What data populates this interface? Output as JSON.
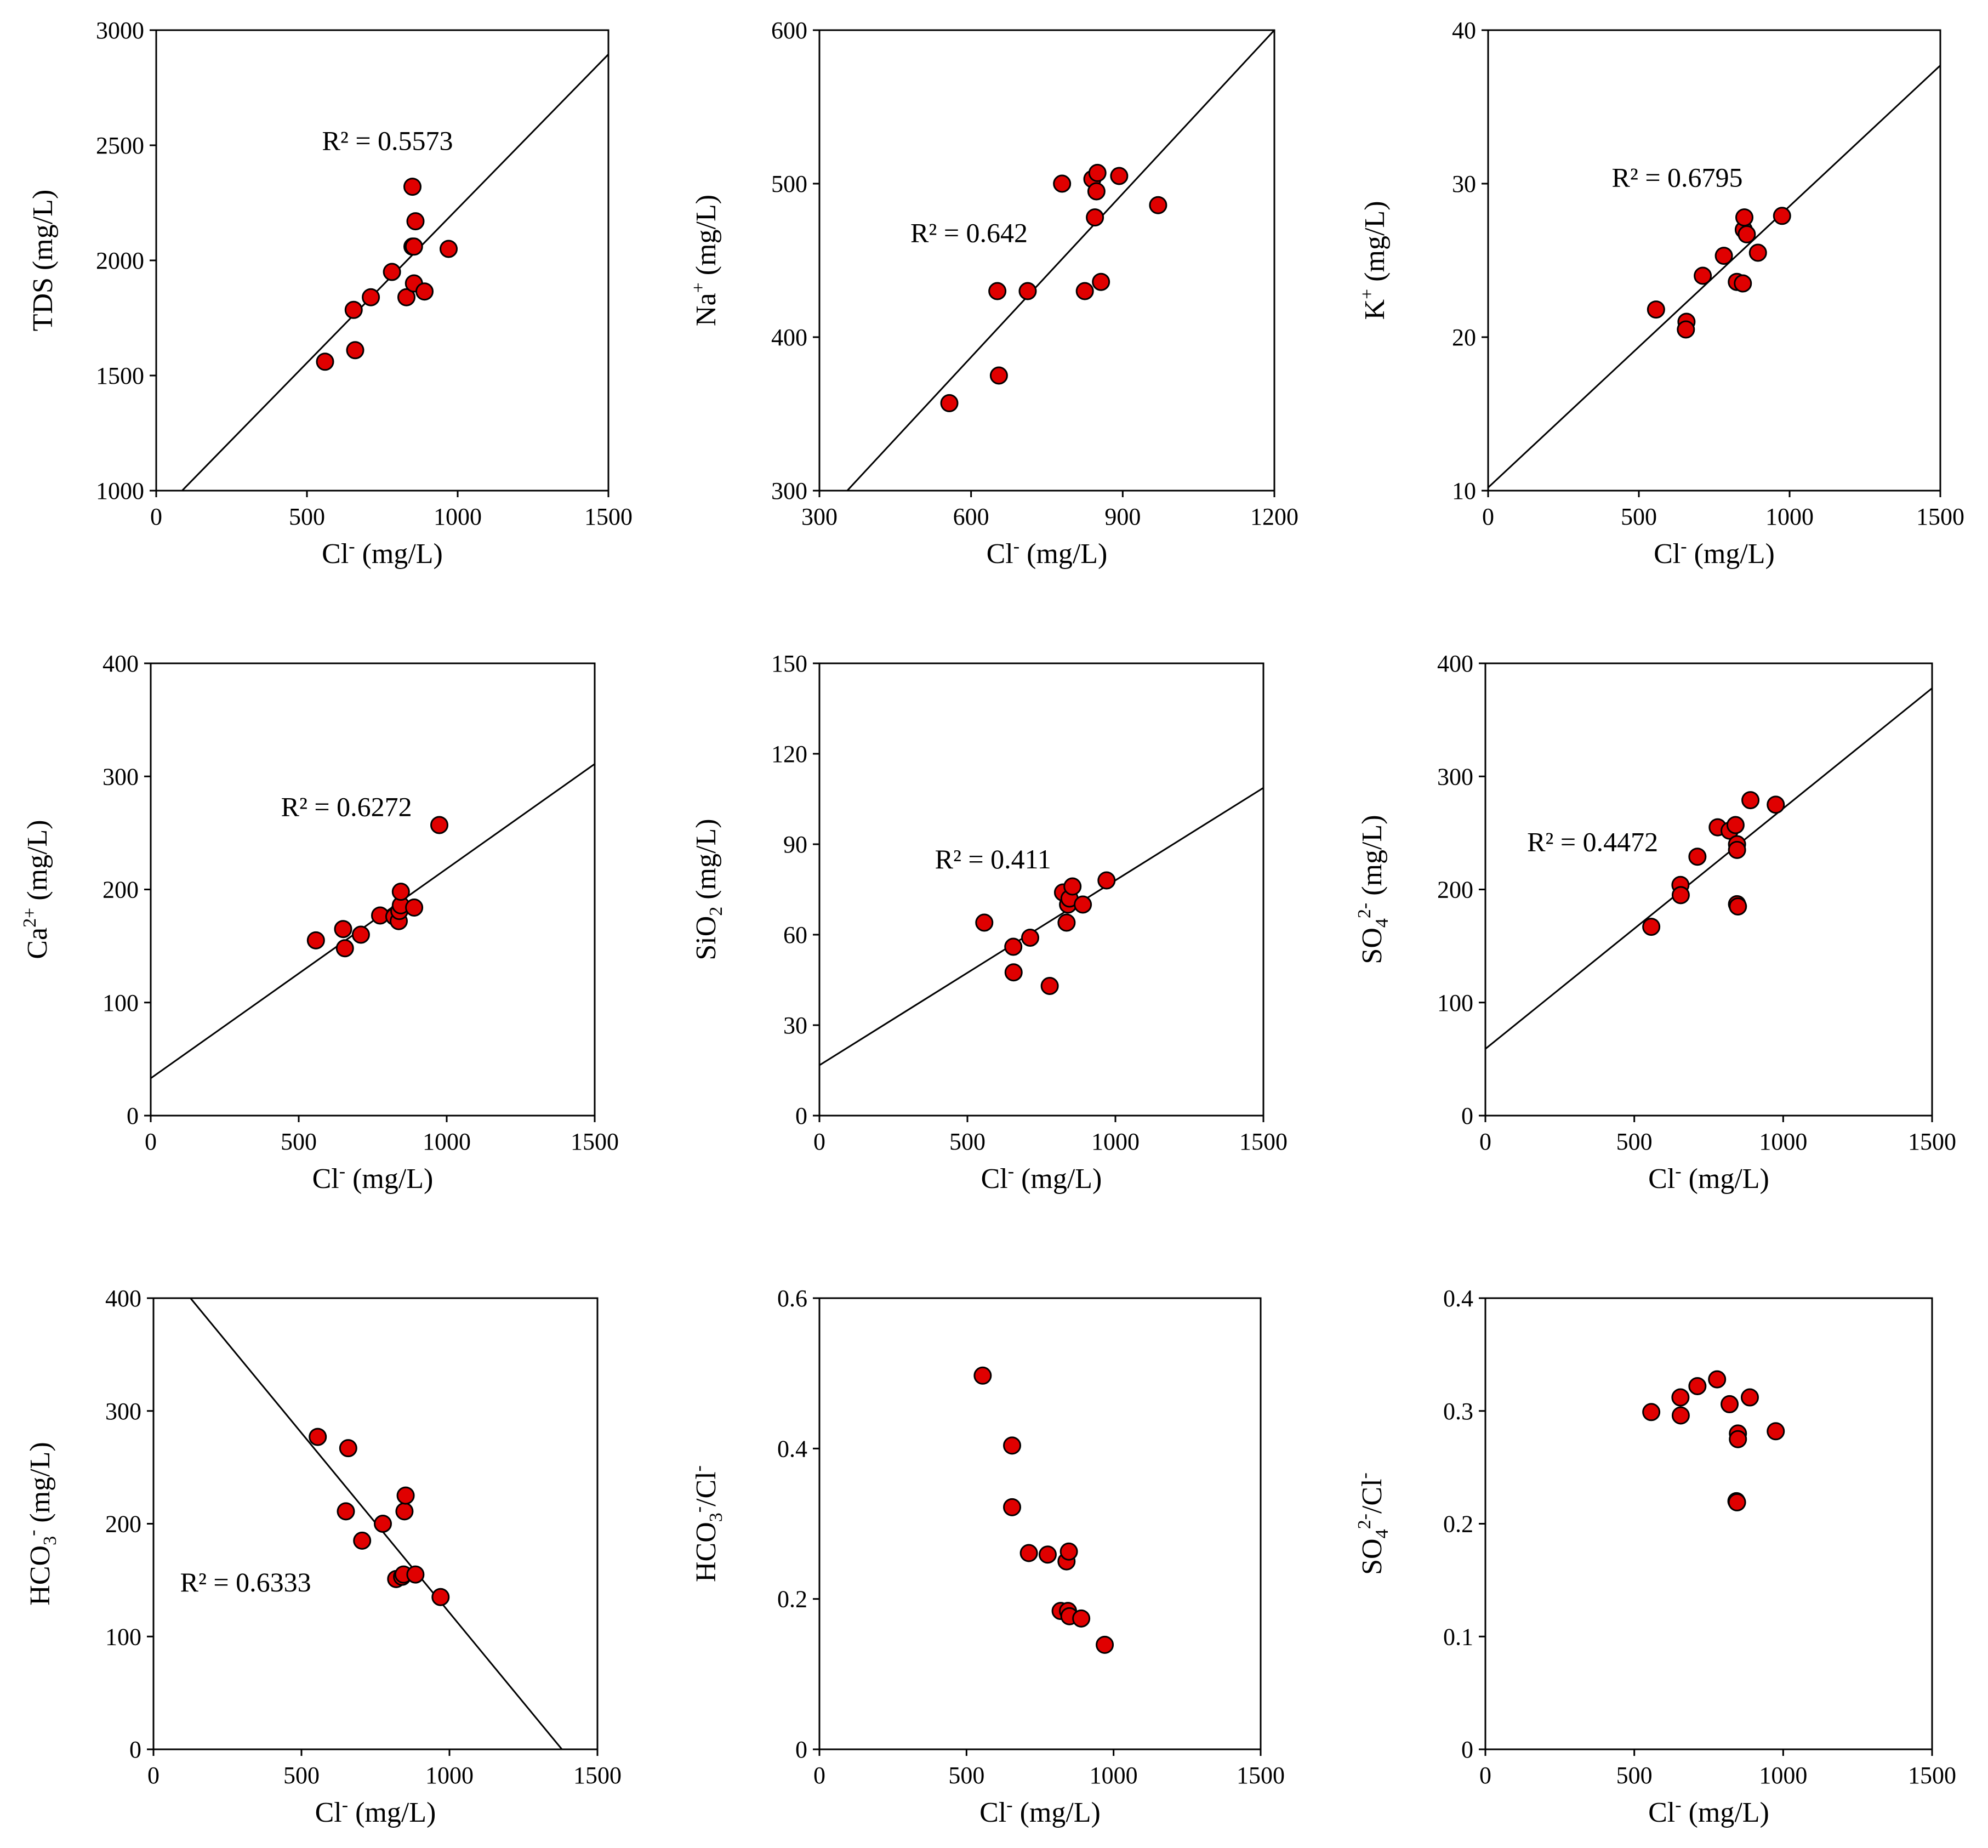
{
  "chart_data": [
    {
      "id": "tds",
      "type": "scatter",
      "xlabel": {
        "main": "Cl",
        "sup": "-",
        "unit": " (mg/L)"
      },
      "ylabel": {
        "main": "TDS",
        "unit": " (mg/L)"
      },
      "xlim": [
        0,
        1500
      ],
      "ylim": [
        1000,
        3000
      ],
      "xticks": [
        "0",
        "500",
        "1000",
        "1500"
      ],
      "yticks": [
        "1000",
        "1500",
        "2000",
        "2500",
        "3000"
      ],
      "r2": "R² = 0.5573",
      "r2_pos": [
        550,
        2480
      ],
      "fit": {
        "x0": 0,
        "y0": 885,
        "x1": 1500,
        "y1": 2895
      },
      "points": [
        [
          560,
          1560
        ],
        [
          660,
          1610
        ],
        [
          655,
          1785
        ],
        [
          712,
          1840
        ],
        [
          782,
          1950
        ],
        [
          830,
          1840
        ],
        [
          850,
          2060
        ],
        [
          855,
          2060
        ],
        [
          855,
          1900
        ],
        [
          890,
          1865
        ],
        [
          860,
          2170
        ],
        [
          850,
          2320
        ],
        [
          970,
          2050
        ]
      ]
    },
    {
      "id": "na",
      "type": "scatter",
      "xlabel": {
        "main": "Cl",
        "sup": "-",
        "unit": " (mg/L)"
      },
      "ylabel": {
        "main": "Na",
        "sup": "+",
        "unit": " (mg/L)"
      },
      "xlim": [
        300,
        1200
      ],
      "ylim": [
        300,
        600
      ],
      "xticks": [
        "300",
        "600",
        "900",
        "1200"
      ],
      "yticks": [
        "300",
        "400",
        "500",
        "600"
      ],
      "r2": "R² = 0.642",
      "r2_pos": [
        480,
        462
      ],
      "fit": {
        "x0": 355,
        "y0": 300,
        "x1": 1200,
        "y1": 600
      },
      "points": [
        [
          557,
          357
        ],
        [
          655,
          375
        ],
        [
          652,
          430
        ],
        [
          712,
          430
        ],
        [
          780,
          500
        ],
        [
          825,
          430
        ],
        [
          840,
          503
        ],
        [
          845,
          478
        ],
        [
          848,
          495
        ],
        [
          850,
          507
        ],
        [
          857,
          436
        ],
        [
          893,
          505
        ],
        [
          970,
          486
        ]
      ]
    },
    {
      "id": "k",
      "type": "scatter",
      "xlabel": {
        "main": "Cl",
        "sup": "-",
        "unit": " (mg/L)"
      },
      "ylabel": {
        "main": "K",
        "sup": "+",
        "unit": " (mg/L)"
      },
      "xlim": [
        0,
        1500
      ],
      "ylim": [
        10,
        40
      ],
      "xticks": [
        "0",
        "500",
        "1000",
        "1500"
      ],
      "yticks": [
        "10",
        "20",
        "30",
        "40"
      ],
      "r2": "R² = 0.6795",
      "r2_pos": [
        410,
        29.8
      ],
      "fit": {
        "x0": 0,
        "y0": 10.2,
        "x1": 1500,
        "y1": 37.7
      },
      "points": [
        [
          557,
          21.8
        ],
        [
          658,
          21.0
        ],
        [
          656,
          20.5
        ],
        [
          712,
          24.0
        ],
        [
          782,
          25.3
        ],
        [
          825,
          23.6
        ],
        [
          845,
          23.5
        ],
        [
          848,
          27.0
        ],
        [
          850,
          27.8
        ],
        [
          858,
          26.7
        ],
        [
          895,
          25.5
        ],
        [
          975,
          27.9
        ]
      ]
    },
    {
      "id": "ca",
      "type": "scatter",
      "xlabel": {
        "main": "Cl",
        "sup": "-",
        "unit": " (mg/L)"
      },
      "ylabel": {
        "main": "Ca",
        "sup": "2+",
        "unit": " (mg/L)"
      },
      "xlim": [
        0,
        1500
      ],
      "ylim": [
        0,
        400
      ],
      "xticks": [
        "0",
        "500",
        "1000",
        "1500"
      ],
      "yticks": [
        "0",
        "100",
        "200",
        "300",
        "400"
      ],
      "r2": "R² = 0.6272",
      "r2_pos": [
        440,
        265
      ],
      "fit": {
        "x0": 0,
        "y0": 33,
        "x1": 1500,
        "y1": 311
      },
      "points": [
        [
          558,
          155
        ],
        [
          650,
          165
        ],
        [
          656,
          148
        ],
        [
          710,
          160
        ],
        [
          775,
          177
        ],
        [
          823,
          176
        ],
        [
          838,
          172
        ],
        [
          840,
          181
        ],
        [
          845,
          186
        ],
        [
          845,
          198
        ],
        [
          890,
          184
        ],
        [
          975,
          257
        ]
      ]
    },
    {
      "id": "si",
      "type": "scatter",
      "xlabel": {
        "main": "Cl",
        "sup": "-",
        "unit": " (mg/L)"
      },
      "ylabel": {
        "main": "SiO",
        "sub": "2",
        "unit": " (mg/L)"
      },
      "xlim": [
        0,
        1500
      ],
      "ylim": [
        0,
        150
      ],
      "xticks": [
        "0",
        "500",
        "1000",
        "1500"
      ],
      "yticks": [
        "0",
        "30",
        "60",
        "90",
        "120",
        "150"
      ],
      "r2": "R² = 0.411",
      "r2_pos": [
        390,
        82
      ],
      "fit": {
        "x0": 0,
        "y0": 16.7,
        "x1": 1500,
        "y1": 108.7
      },
      "points": [
        [
          557,
          64
        ],
        [
          655,
          56
        ],
        [
          656,
          47.5
        ],
        [
          712,
          59
        ],
        [
          778,
          43
        ],
        [
          823,
          74
        ],
        [
          835,
          64
        ],
        [
          840,
          70
        ],
        [
          845,
          72
        ],
        [
          855,
          76
        ],
        [
          890,
          70
        ],
        [
          970,
          78
        ]
      ]
    },
    {
      "id": "so4",
      "type": "scatter",
      "xlabel": {
        "main": "Cl",
        "sup": "-",
        "unit": " (mg/L)"
      },
      "ylabel": {
        "main": "SO",
        "sub": "4",
        "sup": "2-",
        "unit": " (mg/L)"
      },
      "xlim": [
        0,
        1500
      ],
      "ylim": [
        0,
        400
      ],
      "xticks": [
        "0",
        "500",
        "1000",
        "1500"
      ],
      "yticks": [
        "0",
        "100",
        "200",
        "300",
        "400"
      ],
      "r2": "R² = 0.4472",
      "r2_pos": [
        140,
        234
      ],
      "fit": {
        "x0": 0,
        "y0": 59,
        "x1": 1500,
        "y1": 378
      },
      "points": [
        [
          557,
          167
        ],
        [
          655,
          204
        ],
        [
          656,
          195
        ],
        [
          712,
          229
        ],
        [
          780,
          255
        ],
        [
          820,
          252
        ],
        [
          840,
          257
        ],
        [
          845,
          240
        ],
        [
          845,
          235
        ],
        [
          845,
          187
        ],
        [
          848,
          185
        ],
        [
          890,
          279
        ],
        [
          975,
          275
        ]
      ]
    },
    {
      "id": "hco3",
      "type": "scatter",
      "xlabel": {
        "main": "Cl",
        "sup": "-",
        "unit": " (mg/L)"
      },
      "ylabel": {
        "main": "HCO",
        "sub": "3",
        "sup": "-",
        "unit": " (mg/L)"
      },
      "xlim": [
        0,
        1500
      ],
      "ylim": [
        0,
        400
      ],
      "xticks": [
        "0",
        "500",
        "1000",
        "1500"
      ],
      "yticks": [
        "0",
        "100",
        "200",
        "300",
        "400"
      ],
      "r2": "R² = 0.6333",
      "r2_pos": [
        90,
        140
      ],
      "fit": {
        "x0": 125,
        "y0": 400,
        "x1": 1380,
        "y1": 0
      },
      "points": [
        [
          555,
          277
        ],
        [
          650,
          211
        ],
        [
          658,
          267
        ],
        [
          705,
          185
        ],
        [
          775,
          200
        ],
        [
          820,
          151
        ],
        [
          840,
          153
        ],
        [
          845,
          155
        ],
        [
          848,
          211
        ],
        [
          852,
          225
        ],
        [
          885,
          155
        ],
        [
          970,
          135
        ]
      ]
    },
    {
      "id": "hco3cl",
      "type": "scatter",
      "xlabel": {
        "main": "Cl",
        "sup": "-",
        "unit": " (mg/L)"
      },
      "ylabel": {
        "main": "HCO",
        "sub": "3",
        "sup": "-",
        "unit": "/Cl",
        "sup2": "-"
      },
      "xlim": [
        0,
        1500
      ],
      "ylim": [
        0,
        0.6
      ],
      "xticks": [
        "0",
        "500",
        "1000",
        "1500"
      ],
      "yticks": [
        "0",
        "0.2",
        "0.4",
        "0.6"
      ],
      "r2": "",
      "fit": null,
      "points": [
        [
          555,
          0.497
        ],
        [
          655,
          0.404
        ],
        [
          655,
          0.322
        ],
        [
          712,
          0.261
        ],
        [
          776,
          0.259
        ],
        [
          820,
          0.184
        ],
        [
          840,
          0.25
        ],
        [
          845,
          0.184
        ],
        [
          848,
          0.263
        ],
        [
          850,
          0.177
        ],
        [
          890,
          0.174
        ],
        [
          970,
          0.139
        ]
      ]
    },
    {
      "id": "so4cl",
      "type": "scatter",
      "xlabel": {
        "main": "Cl",
        "sup": "-",
        "unit": " (mg/L)"
      },
      "ylabel": {
        "main": "SO",
        "sub": "4",
        "sup": "2-",
        "unit": "/Cl",
        "sup2": "-"
      },
      "xlim": [
        0,
        1500
      ],
      "ylim": [
        0,
        0.4
      ],
      "xticks": [
        "0",
        "500",
        "1000",
        "1500"
      ],
      "yticks": [
        "0",
        "0.1",
        "0.2",
        "0.3",
        "0.4"
      ],
      "r2": "",
      "fit": null,
      "points": [
        [
          557,
          0.299
        ],
        [
          655,
          0.312
        ],
        [
          656,
          0.296
        ],
        [
          712,
          0.322
        ],
        [
          778,
          0.328
        ],
        [
          820,
          0.306
        ],
        [
          843,
          0.22
        ],
        [
          845,
          0.219
        ],
        [
          848,
          0.28
        ],
        [
          848,
          0.275
        ],
        [
          888,
          0.312
        ],
        [
          975,
          0.282
        ]
      ]
    }
  ],
  "colors": {
    "marker_fill": "#e00000",
    "marker_stroke": "#000000",
    "line": "#000000"
  }
}
